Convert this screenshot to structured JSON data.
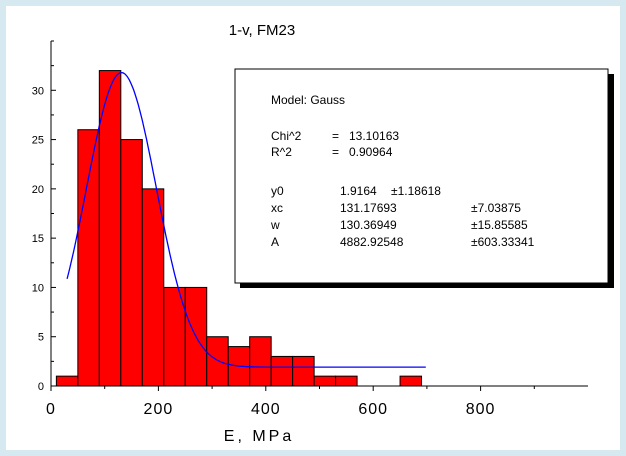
{
  "chart_data": {
    "type": "bar",
    "title": "1-v, FM23",
    "xlabel": "E, MPa",
    "ylabel": "",
    "xlim": [
      0,
      1000
    ],
    "ylim": [
      0,
      35
    ],
    "x_ticks": [
      0,
      200,
      400,
      600,
      800
    ],
    "y_ticks": [
      0,
      5,
      10,
      15,
      20,
      25,
      30
    ],
    "bin_width": 40,
    "bar_color": "#ff0000",
    "curve_color": "#0000ff",
    "bins": [
      {
        "x": 30,
        "value": 1
      },
      {
        "x": 70,
        "value": 26
      },
      {
        "x": 110,
        "value": 32
      },
      {
        "x": 150,
        "value": 25
      },
      {
        "x": 190,
        "value": 20
      },
      {
        "x": 230,
        "value": 10
      },
      {
        "x": 270,
        "value": 10
      },
      {
        "x": 310,
        "value": 5
      },
      {
        "x": 350,
        "value": 4
      },
      {
        "x": 390,
        "value": 5
      },
      {
        "x": 430,
        "value": 3
      },
      {
        "x": 470,
        "value": 3
      },
      {
        "x": 510,
        "value": 1
      },
      {
        "x": 550,
        "value": 1
      },
      {
        "x": 590,
        "value": 0
      },
      {
        "x": 630,
        "value": 0
      },
      {
        "x": 670,
        "value": 1
      }
    ],
    "fit": {
      "model": "Gauss",
      "x_range": [
        30,
        700
      ],
      "y0": 1.9164,
      "xc": 131.17693,
      "w": 130.36949,
      "A": 4882.92548
    },
    "fit_box": {
      "model_line": "Model: Gauss",
      "stats": [
        {
          "name": "Chi^2",
          "eq": "=",
          "value": "13.10163"
        },
        {
          "name": "R^2",
          "eq": "=",
          "value": "0.90964"
        }
      ],
      "params": [
        {
          "name": "y0",
          "value": "1.9164",
          "error": "±1.18618"
        },
        {
          "name": "xc",
          "value": "131.17693",
          "error": "±7.03875"
        },
        {
          "name": "w",
          "value": "130.36949",
          "error": "±15.85585"
        },
        {
          "name": "A",
          "value": "4882.92548",
          "error": "±603.33341"
        }
      ]
    }
  }
}
